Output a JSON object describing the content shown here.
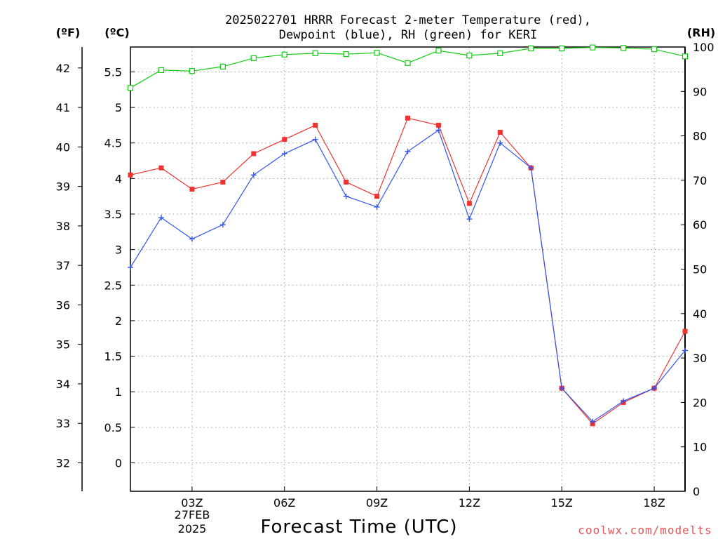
{
  "chart_data": {
    "type": "line",
    "title_line1": "2025022701 HRRR Forecast 2-meter Temperature (red),",
    "title_line2": "Dewpoint (blue), RH (green) for KERI",
    "xlabel": "Forecast Time (UTC)",
    "date_label_line1": "27FEB",
    "date_label_line2": "2025",
    "credit": "coolwx.com/modelts",
    "unit_labels": {
      "fahrenheit": "(ºF)",
      "celsius": "(ºC)",
      "rh": "(RH)"
    },
    "x_hours": [
      1,
      2,
      3,
      4,
      5,
      6,
      7,
      8,
      9,
      10,
      11,
      12,
      13,
      14,
      15,
      16,
      17,
      18,
      19
    ],
    "x_range": [
      1,
      19
    ],
    "x_ticks": [
      {
        "hour": 3,
        "label": "03Z"
      },
      {
        "hour": 6,
        "label": "06Z"
      },
      {
        "hour": 9,
        "label": "09Z"
      },
      {
        "hour": 12,
        "label": "12Z"
      },
      {
        "hour": 15,
        "label": "15Z"
      },
      {
        "hour": 18,
        "label": "18Z"
      }
    ],
    "celsius_axis": {
      "range": [
        -0.4,
        5.85
      ],
      "ticks": [
        "0",
        "0.5",
        "1",
        "1.5",
        "2",
        "2.5",
        "3",
        "3.5",
        "4",
        "4.5",
        "5",
        "5.5"
      ]
    },
    "fahrenheit_axis": {
      "ticks": [
        "32",
        "33",
        "34",
        "35",
        "36",
        "37",
        "38",
        "39",
        "40",
        "41",
        "42"
      ]
    },
    "rh_axis": {
      "range": [
        0,
        100
      ],
      "ticks": [
        "0",
        "10",
        "20",
        "30",
        "40",
        "50",
        "60",
        "70",
        "80",
        "90",
        "100"
      ]
    },
    "grid": true,
    "series": [
      {
        "key": "temperature",
        "axis": "celsius",
        "color": "#ee3333",
        "marker": "filled-square",
        "values": [
          4.05,
          4.15,
          3.85,
          3.95,
          4.35,
          4.55,
          4.75,
          3.95,
          3.75,
          4.85,
          4.75,
          3.65,
          4.65,
          4.15,
          1.05,
          0.55,
          0.85,
          1.05,
          1.85
        ]
      },
      {
        "key": "dewpoint",
        "axis": "celsius",
        "color": "#3355ee",
        "marker": "plus",
        "values": [
          2.75,
          3.45,
          3.15,
          3.35,
          4.05,
          4.35,
          4.55,
          3.75,
          3.6,
          4.38,
          4.68,
          3.43,
          4.5,
          4.15,
          1.05,
          0.58,
          0.87,
          1.05,
          1.58
        ]
      },
      {
        "key": "rh",
        "axis": "rh",
        "color": "#11cc11",
        "marker": "open-square",
        "values": [
          90.8,
          94.8,
          94.6,
          95.6,
          97.5,
          98.3,
          98.6,
          98.4,
          98.7,
          96.4,
          99.2,
          98.1,
          98.6,
          99.7,
          99.7,
          99.9,
          99.8,
          99.5,
          97.9
        ]
      }
    ]
  }
}
